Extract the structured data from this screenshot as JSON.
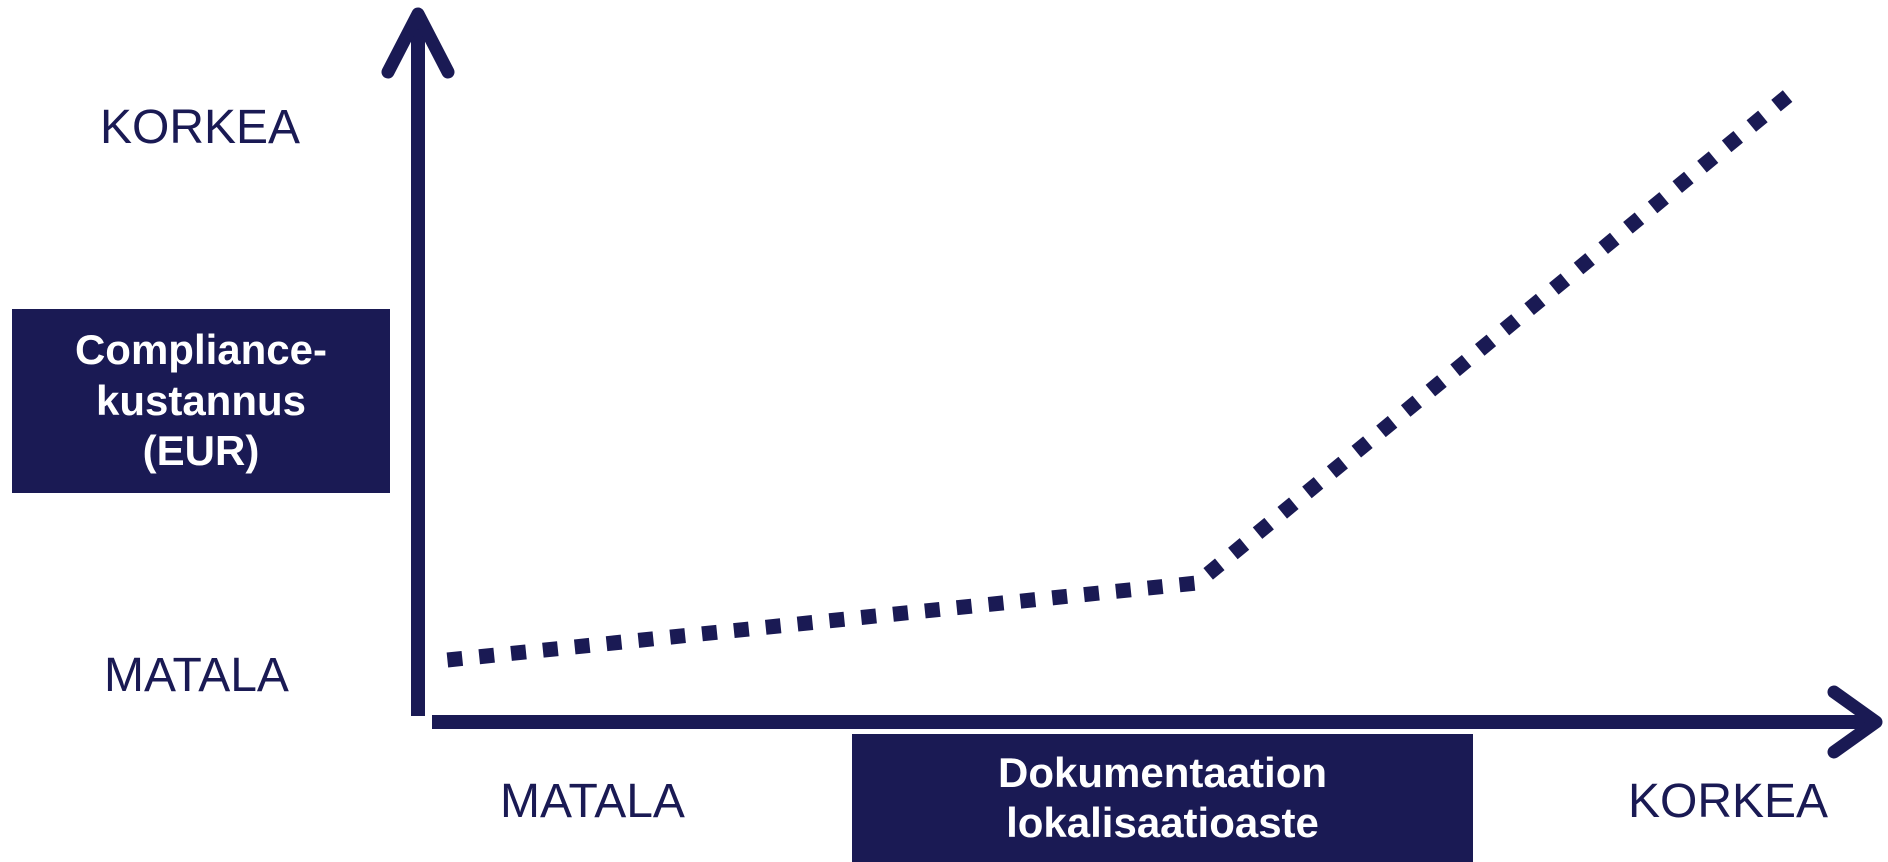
{
  "chart_data": {
    "type": "line",
    "title": "",
    "ylabel_lines": [
      "Compliance-",
      "kustannus",
      "(EUR)"
    ],
    "xlabel_lines": [
      "Dokumentaation",
      "lokalisaatioaste"
    ],
    "yticks": {
      "low": "MATALA",
      "high": "KORKEA"
    },
    "xticks": {
      "low": "MATALA",
      "high": "KORKEA"
    },
    "xlim": [
      0,
      100
    ],
    "ylim": [
      0,
      100
    ],
    "grid": false,
    "legend": "none",
    "series": [
      {
        "line_style": "dotted",
        "points": [
          {
            "x": 2,
            "y": 8
          },
          {
            "x": 53,
            "y": 19
          },
          {
            "x": 94,
            "y": 90
          }
        ]
      }
    ]
  },
  "colors": {
    "primary": "#1a1a54",
    "background": "#ffffff"
  }
}
